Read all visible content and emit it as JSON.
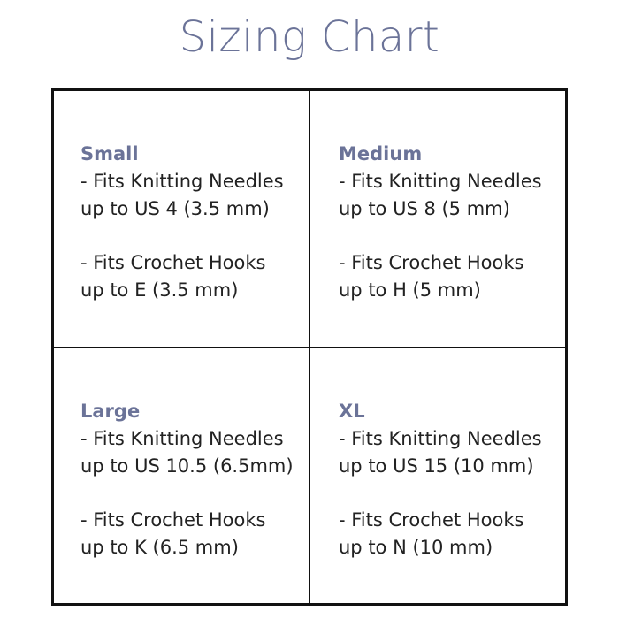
{
  "title": "Sizing Chart",
  "colors": {
    "accent": "#6b7398",
    "border": "#111111",
    "text": "#222222"
  },
  "sizes": [
    {
      "name": "Small",
      "needles_1": "- Fits Knitting Needles",
      "needles_2": "up to US 4 (3.5 mm)",
      "hooks_1": "- Fits Crochet Hooks",
      "hooks_2": "up to E (3.5 mm)"
    },
    {
      "name": "Medium",
      "needles_1": "- Fits Knitting Needles",
      "needles_2": "up to US 8 (5 mm)",
      "hooks_1": "- Fits Crochet Hooks",
      "hooks_2": "up to H (5 mm)"
    },
    {
      "name": "Large",
      "needles_1": "- Fits Knitting Needles",
      "needles_2": "up to US 10.5 (6.5mm)",
      "hooks_1": "- Fits Crochet Hooks",
      "hooks_2": "up to K (6.5 mm)"
    },
    {
      "name": "XL",
      "needles_1": "- Fits Knitting Needles",
      "needles_2": "up to US 15 (10 mm)",
      "hooks_1": "- Fits Crochet Hooks",
      "hooks_2": "up to N (10 mm)"
    }
  ]
}
